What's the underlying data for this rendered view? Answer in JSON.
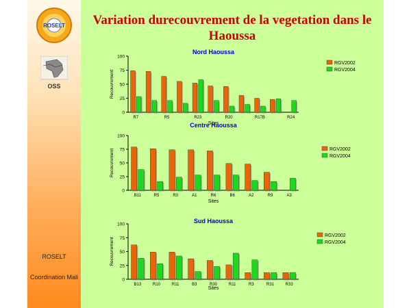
{
  "slide_title": "Variation durecouvrement de la vegetation dans le Haoussa",
  "sidebar": {
    "logo_text": "ROSELT",
    "oss_label": "OSS",
    "org_label": "ROSELT",
    "coordination_label": "Coordination Mali"
  },
  "colors": {
    "rgv2002": "#e8650a",
    "rgv2004": "#1ed81e",
    "title": "#cc0000",
    "chart_title": "#0000cc",
    "slide_bg": "#ccff99"
  },
  "chart_data": [
    {
      "type": "bar",
      "title": "Nord Haoussa",
      "ylabel": "Recouvrement",
      "xlabel": "Sites",
      "ylim": [
        0,
        100
      ],
      "yticks": [
        "0",
        "25",
        "50",
        "75",
        "100"
      ],
      "categories": [
        "R7",
        "",
        "R5",
        "",
        "R23",
        "",
        "R20",
        "",
        "R17B",
        "",
        "R24"
      ],
      "tick_labels": [
        "R7",
        "R5",
        "R23",
        "R20",
        "R17B",
        "R24"
      ],
      "series": [
        {
          "name": "RGV2002",
          "values": [
            74,
            73,
            64,
            55,
            52,
            47,
            46,
            30,
            25,
            23,
            null
          ]
        },
        {
          "name": "RGV2004",
          "values": [
            28,
            21,
            21,
            16,
            58,
            21,
            11,
            14,
            11,
            24,
            21
          ]
        }
      ],
      "legend_position": "top-right"
    },
    {
      "type": "bar",
      "title": "Centre Haoussa",
      "ylabel": "Recouvrement",
      "xlabel": "Sites",
      "ylim": [
        0,
        100
      ],
      "yticks": [
        "0",
        "25",
        "50",
        "75",
        "100"
      ],
      "categories": [
        "B11",
        "R5",
        "R3",
        "A1",
        "R6",
        "B6",
        "A2",
        "R9",
        "A3"
      ],
      "tick_labels": [
        "B11",
        "R5",
        "R3",
        "A1",
        "R6",
        "B6",
        "A2",
        "R9",
        "A3"
      ],
      "series": [
        {
          "name": "RGV2002",
          "values": [
            79,
            76,
            74,
            74,
            72,
            49,
            48,
            33,
            null
          ]
        },
        {
          "name": "RGV2004",
          "values": [
            38,
            16,
            24,
            28,
            28,
            28,
            18,
            16,
            22
          ]
        }
      ],
      "legend_position": "top-right"
    },
    {
      "type": "bar",
      "title": "Sud Haoussa",
      "ylabel": "Recouvrement",
      "xlabel": "Sites",
      "ylim": [
        0,
        100
      ],
      "yticks": [
        "0",
        "25",
        "50",
        "75",
        "100"
      ],
      "categories": [
        "B13",
        "R10",
        "R11",
        "B3",
        "R30",
        "R11",
        "R3",
        "R31",
        "R33"
      ],
      "tick_labels": [
        "B13",
        "R10",
        "R11",
        "B3",
        "R30",
        "R11",
        "R3",
        "R31",
        "R33"
      ],
      "series": [
        {
          "name": "RGV2002",
          "values": [
            62,
            49,
            49,
            37,
            34,
            26,
            12,
            12,
            12
          ]
        },
        {
          "name": "RGV2004",
          "values": [
            38,
            28,
            42,
            14,
            23,
            47,
            35,
            12,
            12
          ]
        }
      ],
      "legend_position": "top-right"
    }
  ]
}
